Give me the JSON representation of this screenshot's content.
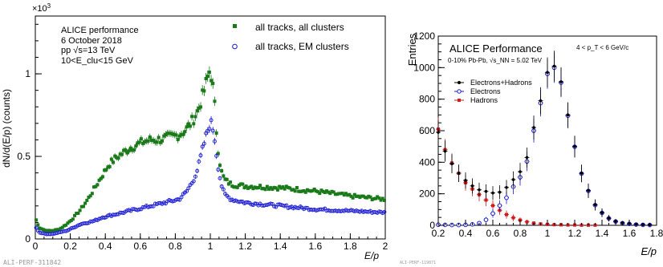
{
  "chart_data": [
    {
      "type": "scatter",
      "exponent_label": "×10",
      "exponent_power": "3",
      "ylabel": "dN/d(E/p) (counts)",
      "xlabel": "E/p",
      "xlim": [
        0,
        2
      ],
      "ylim": [
        0,
        1.35
      ],
      "x_ticks": [
        0,
        0.2,
        0.4,
        0.6,
        0.8,
        1,
        1.2,
        1.4,
        1.6,
        1.8,
        2
      ],
      "y_ticks": [
        0,
        0.5,
        1
      ],
      "annotations": [
        "ALICE performance",
        "6 October 2018",
        "pp  √s=13 TeV",
        "10<E_clu<15 GeV"
      ],
      "footer": "ALI-PERF-311842",
      "legend_position": "top-right",
      "series": [
        {
          "name": "all tracks, all clusters",
          "color": "#1a7a1a",
          "marker": "filled-square",
          "curve": [
            [
              0,
              0.13
            ],
            [
              0.02,
              0.07
            ],
            [
              0.06,
              0.05
            ],
            [
              0.1,
              0.05
            ],
            [
              0.14,
              0.06
            ],
            [
              0.18,
              0.09
            ],
            [
              0.22,
              0.13
            ],
            [
              0.26,
              0.18
            ],
            [
              0.3,
              0.24
            ],
            [
              0.34,
              0.31
            ],
            [
              0.38,
              0.38
            ],
            [
              0.42,
              0.45
            ],
            [
              0.46,
              0.49
            ],
            [
              0.5,
              0.52
            ],
            [
              0.54,
              0.55
            ],
            [
              0.58,
              0.57
            ],
            [
              0.62,
              0.59
            ],
            [
              0.66,
              0.6
            ],
            [
              0.7,
              0.6
            ],
            [
              0.74,
              0.61
            ],
            [
              0.78,
              0.62
            ],
            [
              0.82,
              0.63
            ],
            [
              0.86,
              0.66
            ],
            [
              0.9,
              0.72
            ],
            [
              0.93,
              0.78
            ],
            [
              0.96,
              0.88
            ],
            [
              0.98,
              0.96
            ],
            [
              1.0,
              1.03
            ],
            [
              1.02,
              0.88
            ],
            [
              1.04,
              0.58
            ],
            [
              1.06,
              0.42
            ],
            [
              1.08,
              0.36
            ],
            [
              1.12,
              0.33
            ],
            [
              1.2,
              0.32
            ],
            [
              1.4,
              0.31
            ],
            [
              1.6,
              0.29
            ],
            [
              1.8,
              0.26
            ],
            [
              2.0,
              0.24
            ]
          ]
        },
        {
          "name": "all tracks, EM clusters",
          "color": "#1a1ad6",
          "marker": "open-circle",
          "curve": [
            [
              0,
              0.08
            ],
            [
              0.02,
              0.04
            ],
            [
              0.06,
              0.03
            ],
            [
              0.1,
              0.03
            ],
            [
              0.14,
              0.04
            ],
            [
              0.18,
              0.05
            ],
            [
              0.22,
              0.07
            ],
            [
              0.26,
              0.09
            ],
            [
              0.3,
              0.1
            ],
            [
              0.34,
              0.11
            ],
            [
              0.38,
              0.13
            ],
            [
              0.42,
              0.14
            ],
            [
              0.46,
              0.15
            ],
            [
              0.5,
              0.16
            ],
            [
              0.54,
              0.17
            ],
            [
              0.58,
              0.18
            ],
            [
              0.62,
              0.19
            ],
            [
              0.66,
              0.2
            ],
            [
              0.7,
              0.21
            ],
            [
              0.74,
              0.22
            ],
            [
              0.78,
              0.23
            ],
            [
              0.82,
              0.24
            ],
            [
              0.86,
              0.28
            ],
            [
              0.9,
              0.35
            ],
            [
              0.93,
              0.43
            ],
            [
              0.96,
              0.56
            ],
            [
              0.98,
              0.64
            ],
            [
              1.0,
              0.71
            ],
            [
              1.02,
              0.65
            ],
            [
              1.04,
              0.47
            ],
            [
              1.06,
              0.34
            ],
            [
              1.08,
              0.27
            ],
            [
              1.12,
              0.24
            ],
            [
              1.2,
              0.22
            ],
            [
              1.4,
              0.2
            ],
            [
              1.6,
              0.18
            ],
            [
              1.8,
              0.17
            ],
            [
              2.0,
              0.16
            ]
          ]
        }
      ]
    },
    {
      "type": "scatter",
      "title": "ALICE Performance",
      "subtitle": "0-10% Pb-Pb, √s_NN = 5.02 TeV",
      "bin_label": "4 < p_T < 6 GeV/c",
      "ylabel": "Entries",
      "xlabel": "E/p",
      "xlim": [
        0.2,
        1.8
      ],
      "ylim": [
        0,
        1200
      ],
      "x_ticks": [
        0.2,
        0.4,
        0.6,
        0.8,
        1,
        1.2,
        1.4,
        1.6,
        1.8
      ],
      "y_ticks": [
        0,
        200,
        400,
        600,
        800,
        1000,
        1200
      ],
      "footer": "ALI-PERF-119871",
      "legend_position": "top-left",
      "x": [
        0.2,
        0.25,
        0.3,
        0.35,
        0.4,
        0.45,
        0.5,
        0.55,
        0.6,
        0.65,
        0.7,
        0.75,
        0.8,
        0.85,
        0.9,
        0.95,
        1.0,
        1.05,
        1.1,
        1.15,
        1.2,
        1.25,
        1.3,
        1.35,
        1.4,
        1.45,
        1.5,
        1.55,
        1.6,
        1.65,
        1.7,
        1.75
      ],
      "series": [
        {
          "name": "Electrons+Hadrons",
          "color": "#000000",
          "marker": "filled-circle",
          "values": [
            590,
            470,
            390,
            330,
            285,
            250,
            225,
            215,
            205,
            210,
            240,
            290,
            340,
            430,
            620,
            790,
            970,
            1010,
            910,
            700,
            500,
            330,
            220,
            130,
            80,
            45,
            25,
            15,
            10,
            6,
            4,
            3
          ]
        },
        {
          "name": "Electrons",
          "color": "#1a1ad6",
          "marker": "open-circle",
          "values": [
            4,
            3,
            2,
            2,
            3,
            6,
            14,
            35,
            75,
            125,
            175,
            245,
            305,
            405,
            600,
            775,
            960,
            1000,
            905,
            695,
            498,
            328,
            218,
            128,
            79,
            44,
            24,
            14,
            9,
            5,
            3,
            2
          ]
        },
        {
          "name": "Hadrons",
          "color": "#d41a1a",
          "marker": "filled-square",
          "values": [
            610,
            480,
            395,
            330,
            270,
            230,
            195,
            160,
            125,
            95,
            68,
            48,
            33,
            22,
            14,
            9,
            6,
            4,
            3,
            2,
            2,
            1,
            1,
            1,
            0,
            0,
            0,
            0,
            0,
            0,
            0,
            0
          ]
        }
      ]
    }
  ]
}
